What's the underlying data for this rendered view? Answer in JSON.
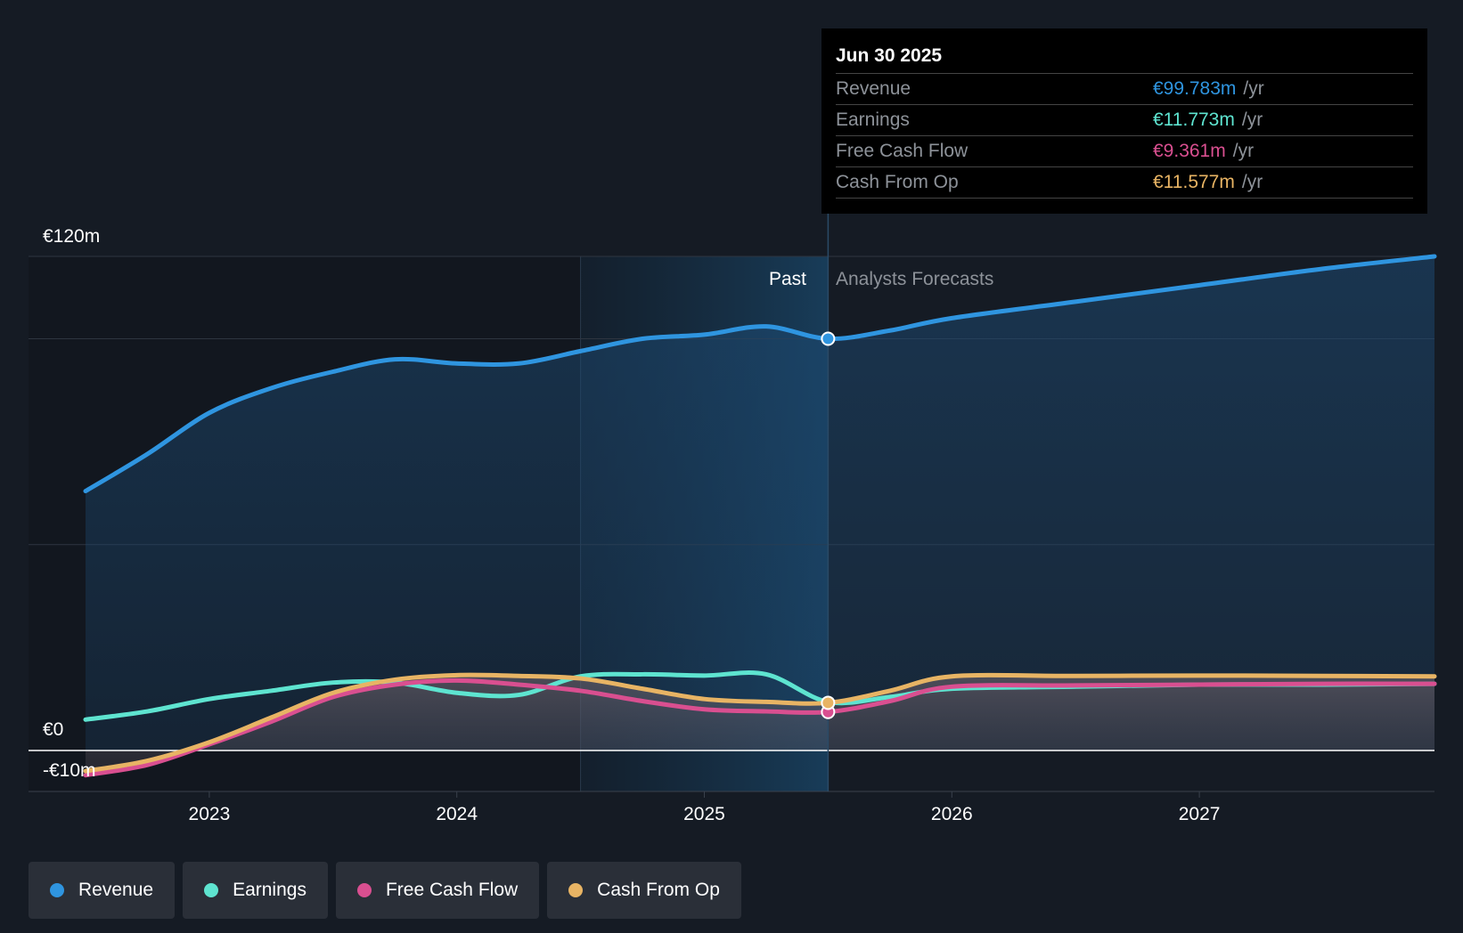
{
  "chart_data": {
    "type": "line",
    "y_axis": {
      "min": -10,
      "max": 120,
      "labels": [
        {
          "value": 120,
          "text": "€120m"
        },
        {
          "value": 0,
          "text": "€0"
        },
        {
          "value": -10,
          "text": "-€10m"
        }
      ]
    },
    "x_axis": {
      "min": 2022.5,
      "max": 2027.95,
      "ticks": [
        2023,
        2024,
        2025,
        2026,
        2027
      ],
      "tick_labels": [
        "2023",
        "2024",
        "2025",
        "2026",
        "2027"
      ]
    },
    "past_label": "Past",
    "forecast_label": "Analysts Forecasts",
    "past_end": 2025.5,
    "highlight_start": 2024.5,
    "series": [
      {
        "name": "Revenue",
        "color": "#2f95e0",
        "x": [
          2022.5,
          2022.75,
          2023.0,
          2023.25,
          2023.5,
          2023.75,
          2024.0,
          2024.25,
          2024.5,
          2024.75,
          2025.0,
          2025.25,
          2025.5,
          2025.75,
          2026.0,
          2026.5,
          2027.0,
          2027.5,
          2027.95
        ],
        "values": [
          63,
          72,
          82,
          88,
          92,
          95,
          94,
          94,
          97,
          100,
          101,
          103,
          100,
          102,
          105,
          109,
          113,
          117,
          120
        ]
      },
      {
        "name": "Earnings",
        "color": "#5ee4d0",
        "x": [
          2022.5,
          2022.75,
          2023.0,
          2023.25,
          2023.5,
          2023.75,
          2024.0,
          2024.25,
          2024.5,
          2024.75,
          2025.0,
          2025.25,
          2025.5,
          2025.75,
          2026.0,
          2026.5,
          2027.0,
          2027.5,
          2027.95
        ],
        "values": [
          7.5,
          9.5,
          12.5,
          14.5,
          16.5,
          16.5,
          14,
          13.5,
          18,
          18.5,
          18.2,
          18.5,
          11.8,
          13,
          15,
          15.5,
          16,
          16,
          16.2
        ]
      },
      {
        "name": "Free Cash Flow",
        "color": "#d94f90",
        "x": [
          2022.5,
          2022.75,
          2023.0,
          2023.25,
          2023.5,
          2023.75,
          2024.0,
          2024.25,
          2024.5,
          2024.75,
          2025.0,
          2025.25,
          2025.5,
          2025.75,
          2026.0,
          2026.5,
          2027.0,
          2027.5,
          2027.95
        ],
        "values": [
          -6,
          -3.5,
          1.5,
          7,
          13,
          16,
          17,
          16,
          14.5,
          12,
          10,
          9.5,
          9.36,
          12,
          15.5,
          15.8,
          16,
          16.2,
          16.2
        ]
      },
      {
        "name": "Cash From Op",
        "color": "#e8b464",
        "x": [
          2022.5,
          2022.75,
          2023.0,
          2023.25,
          2023.5,
          2023.75,
          2024.0,
          2024.25,
          2024.5,
          2024.75,
          2025.0,
          2025.25,
          2025.5,
          2025.75,
          2026.0,
          2026.5,
          2027.0,
          2027.5,
          2027.95
        ],
        "values": [
          -5,
          -2.5,
          2,
          8,
          14,
          17.2,
          18.3,
          18.1,
          17.5,
          15,
          12.5,
          11.8,
          11.58,
          14.5,
          18,
          18.1,
          18.2,
          18.1,
          18
        ]
      }
    ]
  },
  "tooltip": {
    "date": "Jun 30 2025",
    "unit": "/yr",
    "rows": [
      {
        "label": "Revenue",
        "value": "€99.783m",
        "color": "#2f95e0"
      },
      {
        "label": "Earnings",
        "value": "€11.773m",
        "color": "#5ee4d0"
      },
      {
        "label": "Free Cash Flow",
        "value": "€9.361m",
        "color": "#d94f90"
      },
      {
        "label": "Cash From Op",
        "value": "€11.577m",
        "color": "#e8b464"
      }
    ]
  },
  "legend": [
    {
      "label": "Revenue",
      "color": "#2f95e0"
    },
    {
      "label": "Earnings",
      "color": "#5ee4d0"
    },
    {
      "label": "Free Cash Flow",
      "color": "#d94f90"
    },
    {
      "label": "Cash From Op",
      "color": "#e8b464"
    }
  ]
}
